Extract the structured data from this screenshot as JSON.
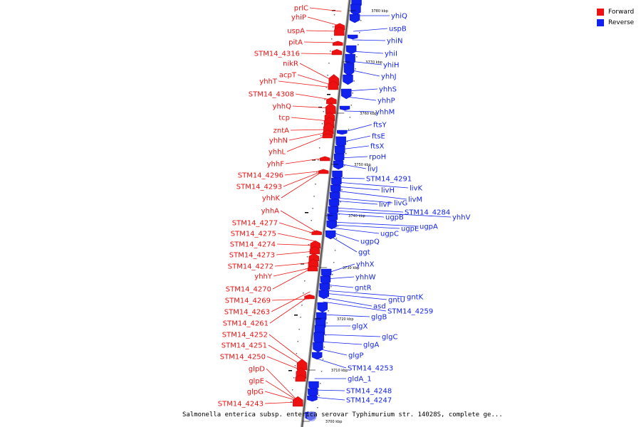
{
  "legend": {
    "items": [
      {
        "label": "Forward",
        "color": "#ee1111"
      },
      {
        "label": "Reverse",
        "color": "#1122ee"
      }
    ]
  },
  "caption": "Salmonella enterica subsp. enterica serovar Typhimurium str. 14028S, complete ge...",
  "ticks": [
    "3780 kbp",
    "3770 kbp",
    "3760 kbp",
    "3750 kbp",
    "3740 kbp",
    "3730 kbp",
    "3720 kbp",
    "3710 kbp",
    "3700 kbp"
  ],
  "forward_genes": [
    "prlC",
    "yhiP",
    "uspA",
    "pitA",
    "STM14_4316",
    "nikR",
    "acpT",
    "yhhT",
    "STM14_4308",
    "yhhQ",
    "tcp",
    "zntA",
    "yhhN",
    "yhhL",
    "yhhF",
    "STM14_4296",
    "STM14_4293",
    "yhhK",
    "yhhA",
    "STM14_4277",
    "STM14_4275",
    "STM14_4274",
    "STM14_4273",
    "STM14_4272",
    "yhhY",
    "STM14_4270",
    "STM14_4269",
    "STM14_4263",
    "STM14_4261",
    "STM14_4252",
    "STM14_4251",
    "STM14_4250",
    "glpD",
    "glpE",
    "glpG",
    "STM14_4243"
  ],
  "reverse_genes": [
    "yhiQ",
    "uspB",
    "yhiN",
    "yhiI",
    "yhiH",
    "yhhJ",
    "yhhS",
    "yhhP",
    "yhhM",
    "ftsY",
    "ftsE",
    "ftsX",
    "rpoH",
    "livJ",
    "STM14_4291",
    "livK",
    "livH",
    "livM",
    "livG",
    "livF",
    "STM14_4284",
    "yhhV",
    "ugpB",
    "ugpA",
    "ugpE",
    "ugpC",
    "ugpQ",
    "ggt",
    "yhhX",
    "yhhW",
    "gntR",
    "gntK",
    "gntU",
    "asd",
    "STM14_4259",
    "glgB",
    "glgX",
    "glgC",
    "glgA",
    "glgP",
    "STM14_4253",
    "gldA_1",
    "STM14_4248",
    "STM14_4247"
  ]
}
